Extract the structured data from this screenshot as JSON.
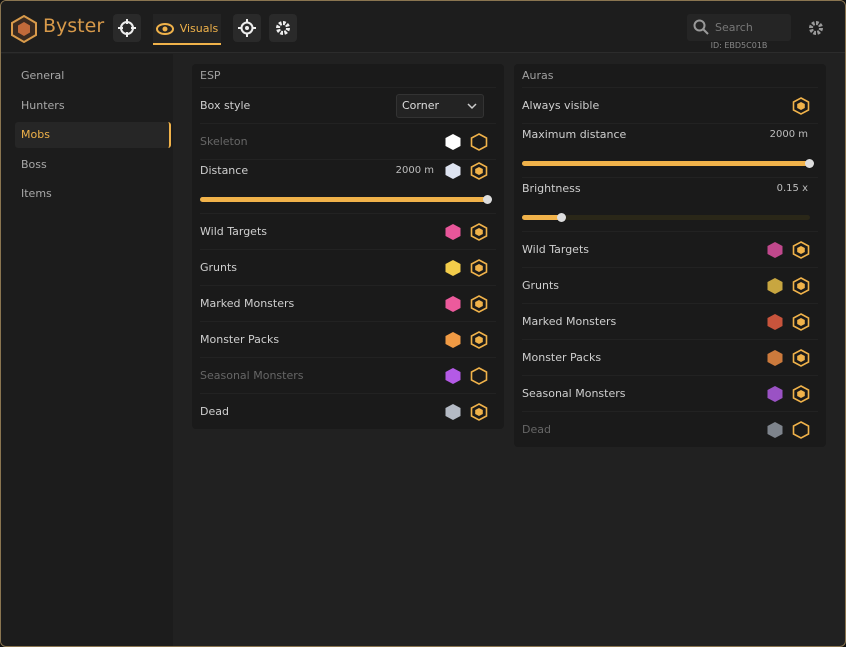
{
  "header": {
    "brand": "Byster",
    "active_tab": "Visuals",
    "search_placeholder": "Search",
    "id": "ID: EBD5C01B"
  },
  "sidebar": {
    "items": [
      "General",
      "Hunters",
      "Mobs",
      "Boss",
      "Items"
    ],
    "active": 2
  },
  "esp": {
    "title": "ESP",
    "rows": [
      {
        "label": "Box style",
        "select": "Corner"
      },
      {
        "label": "Skeleton",
        "color": "#ffffff",
        "enabled": false
      },
      {
        "label": "Distance",
        "value": "2000 m",
        "color": "#dde3f0",
        "enabled": true
      },
      {
        "label": "Wild Targets",
        "color": "#e8569a",
        "enabled": true
      },
      {
        "label": "Grunts",
        "color": "#f2cc4a",
        "enabled": true
      },
      {
        "label": "Marked Monsters",
        "color": "#ec5a9c",
        "enabled": true
      },
      {
        "label": "Monster Packs",
        "color": "#f09a44",
        "enabled": true
      },
      {
        "label": "Seasonal Monsters",
        "color": "#b45ae6",
        "enabled": false
      },
      {
        "label": "Dead",
        "color": "#b4bac4",
        "enabled": true
      }
    ]
  },
  "auras": {
    "title": "Auras",
    "rows": [
      {
        "label": "Always visible",
        "enabled": true
      },
      {
        "label": "Maximum distance",
        "value": "2000 m"
      },
      {
        "label": "Brightness",
        "value": "0.15 x"
      },
      {
        "label": "Wild Targets",
        "color": "#c0488c",
        "enabled": true
      },
      {
        "label": "Grunts",
        "color": "#c8a640",
        "enabled": true
      },
      {
        "label": "Marked Monsters",
        "color": "#c8543c",
        "enabled": true
      },
      {
        "label": "Monster Packs",
        "color": "#cc7a3c",
        "enabled": true
      },
      {
        "label": "Seasonal Monsters",
        "color": "#9a52c4",
        "enabled": true
      },
      {
        "label": "Dead",
        "color": "#7e848c",
        "enabled": false
      }
    ]
  }
}
